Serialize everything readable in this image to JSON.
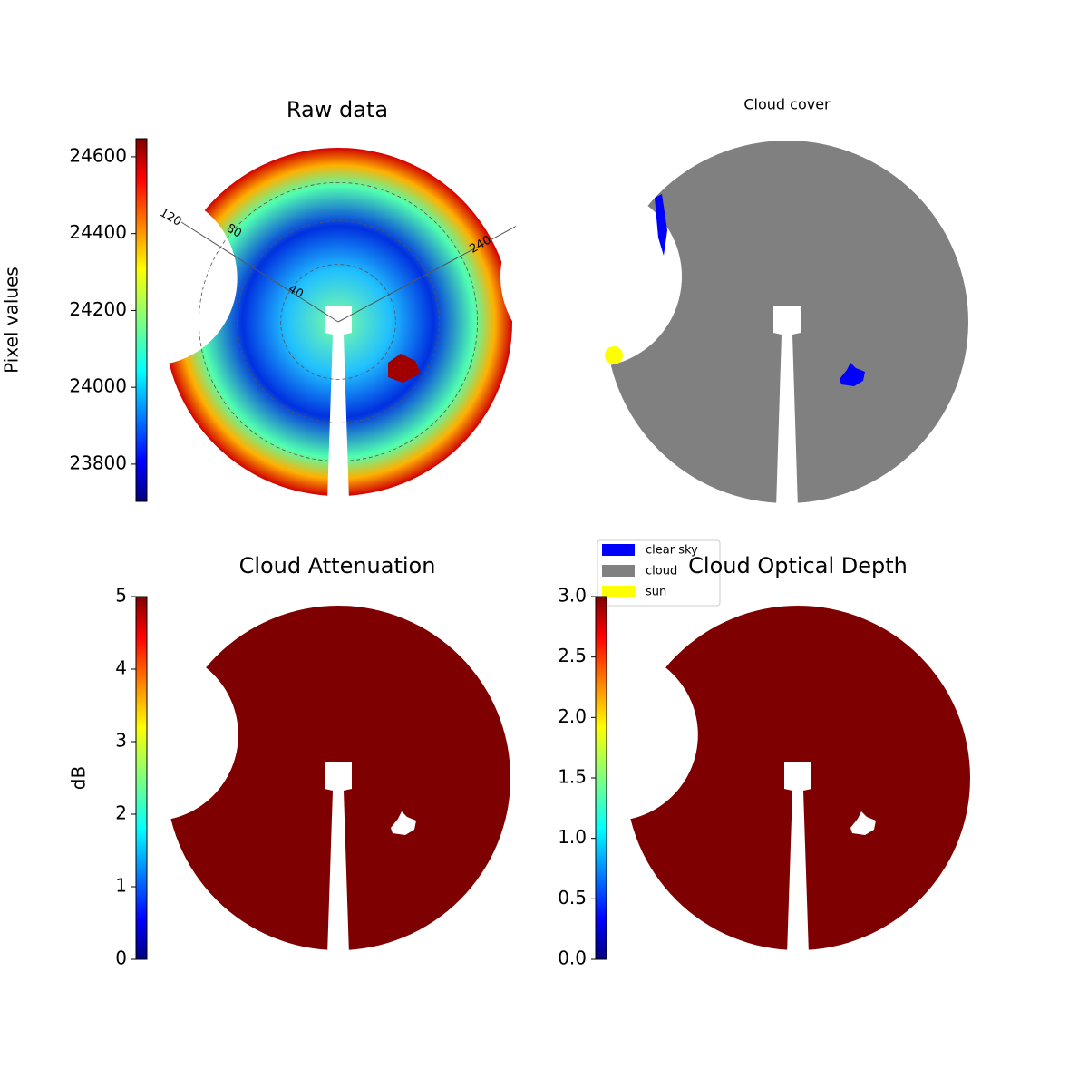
{
  "chart_data": [
    {
      "type": "image",
      "title": "Raw data",
      "colorbar": {
        "label": "Pixel values",
        "clim": [
          23703,
          24647
        ],
        "ticks": [
          23800,
          24000,
          24200,
          24400,
          24600
        ],
        "colormap": "jet"
      },
      "annotations": [
        "120",
        "80",
        "40",
        "240"
      ]
    },
    {
      "type": "image",
      "title": "Cloud cover",
      "legend": [
        {
          "name": "clear sky",
          "color": "#0000ff"
        },
        {
          "name": "cloud",
          "color": "#808080"
        },
        {
          "name": "sun",
          "color": "#ffff00"
        }
      ]
    },
    {
      "type": "image",
      "title": "Cloud Attenuation",
      "colorbar": {
        "label": "dB",
        "clim": [
          0,
          5
        ],
        "ticks": [
          0,
          1,
          2,
          3,
          4,
          5
        ],
        "colormap": "jet"
      }
    },
    {
      "type": "image",
      "title": "Cloud Optical Depth",
      "colorbar": {
        "clim": [
          0,
          3
        ],
        "ticks": [
          {
            "value": 0,
            "label": "0.0"
          },
          {
            "value": 0.5,
            "label": "0.5"
          },
          {
            "value": 1,
            "label": "1.0"
          },
          {
            "value": 1.5,
            "label": "1.5"
          },
          {
            "value": 2,
            "label": "2.0"
          },
          {
            "value": 2.5,
            "label": "2.5"
          },
          {
            "value": 3,
            "label": "3.0"
          }
        ],
        "colormap": "jet"
      }
    }
  ]
}
